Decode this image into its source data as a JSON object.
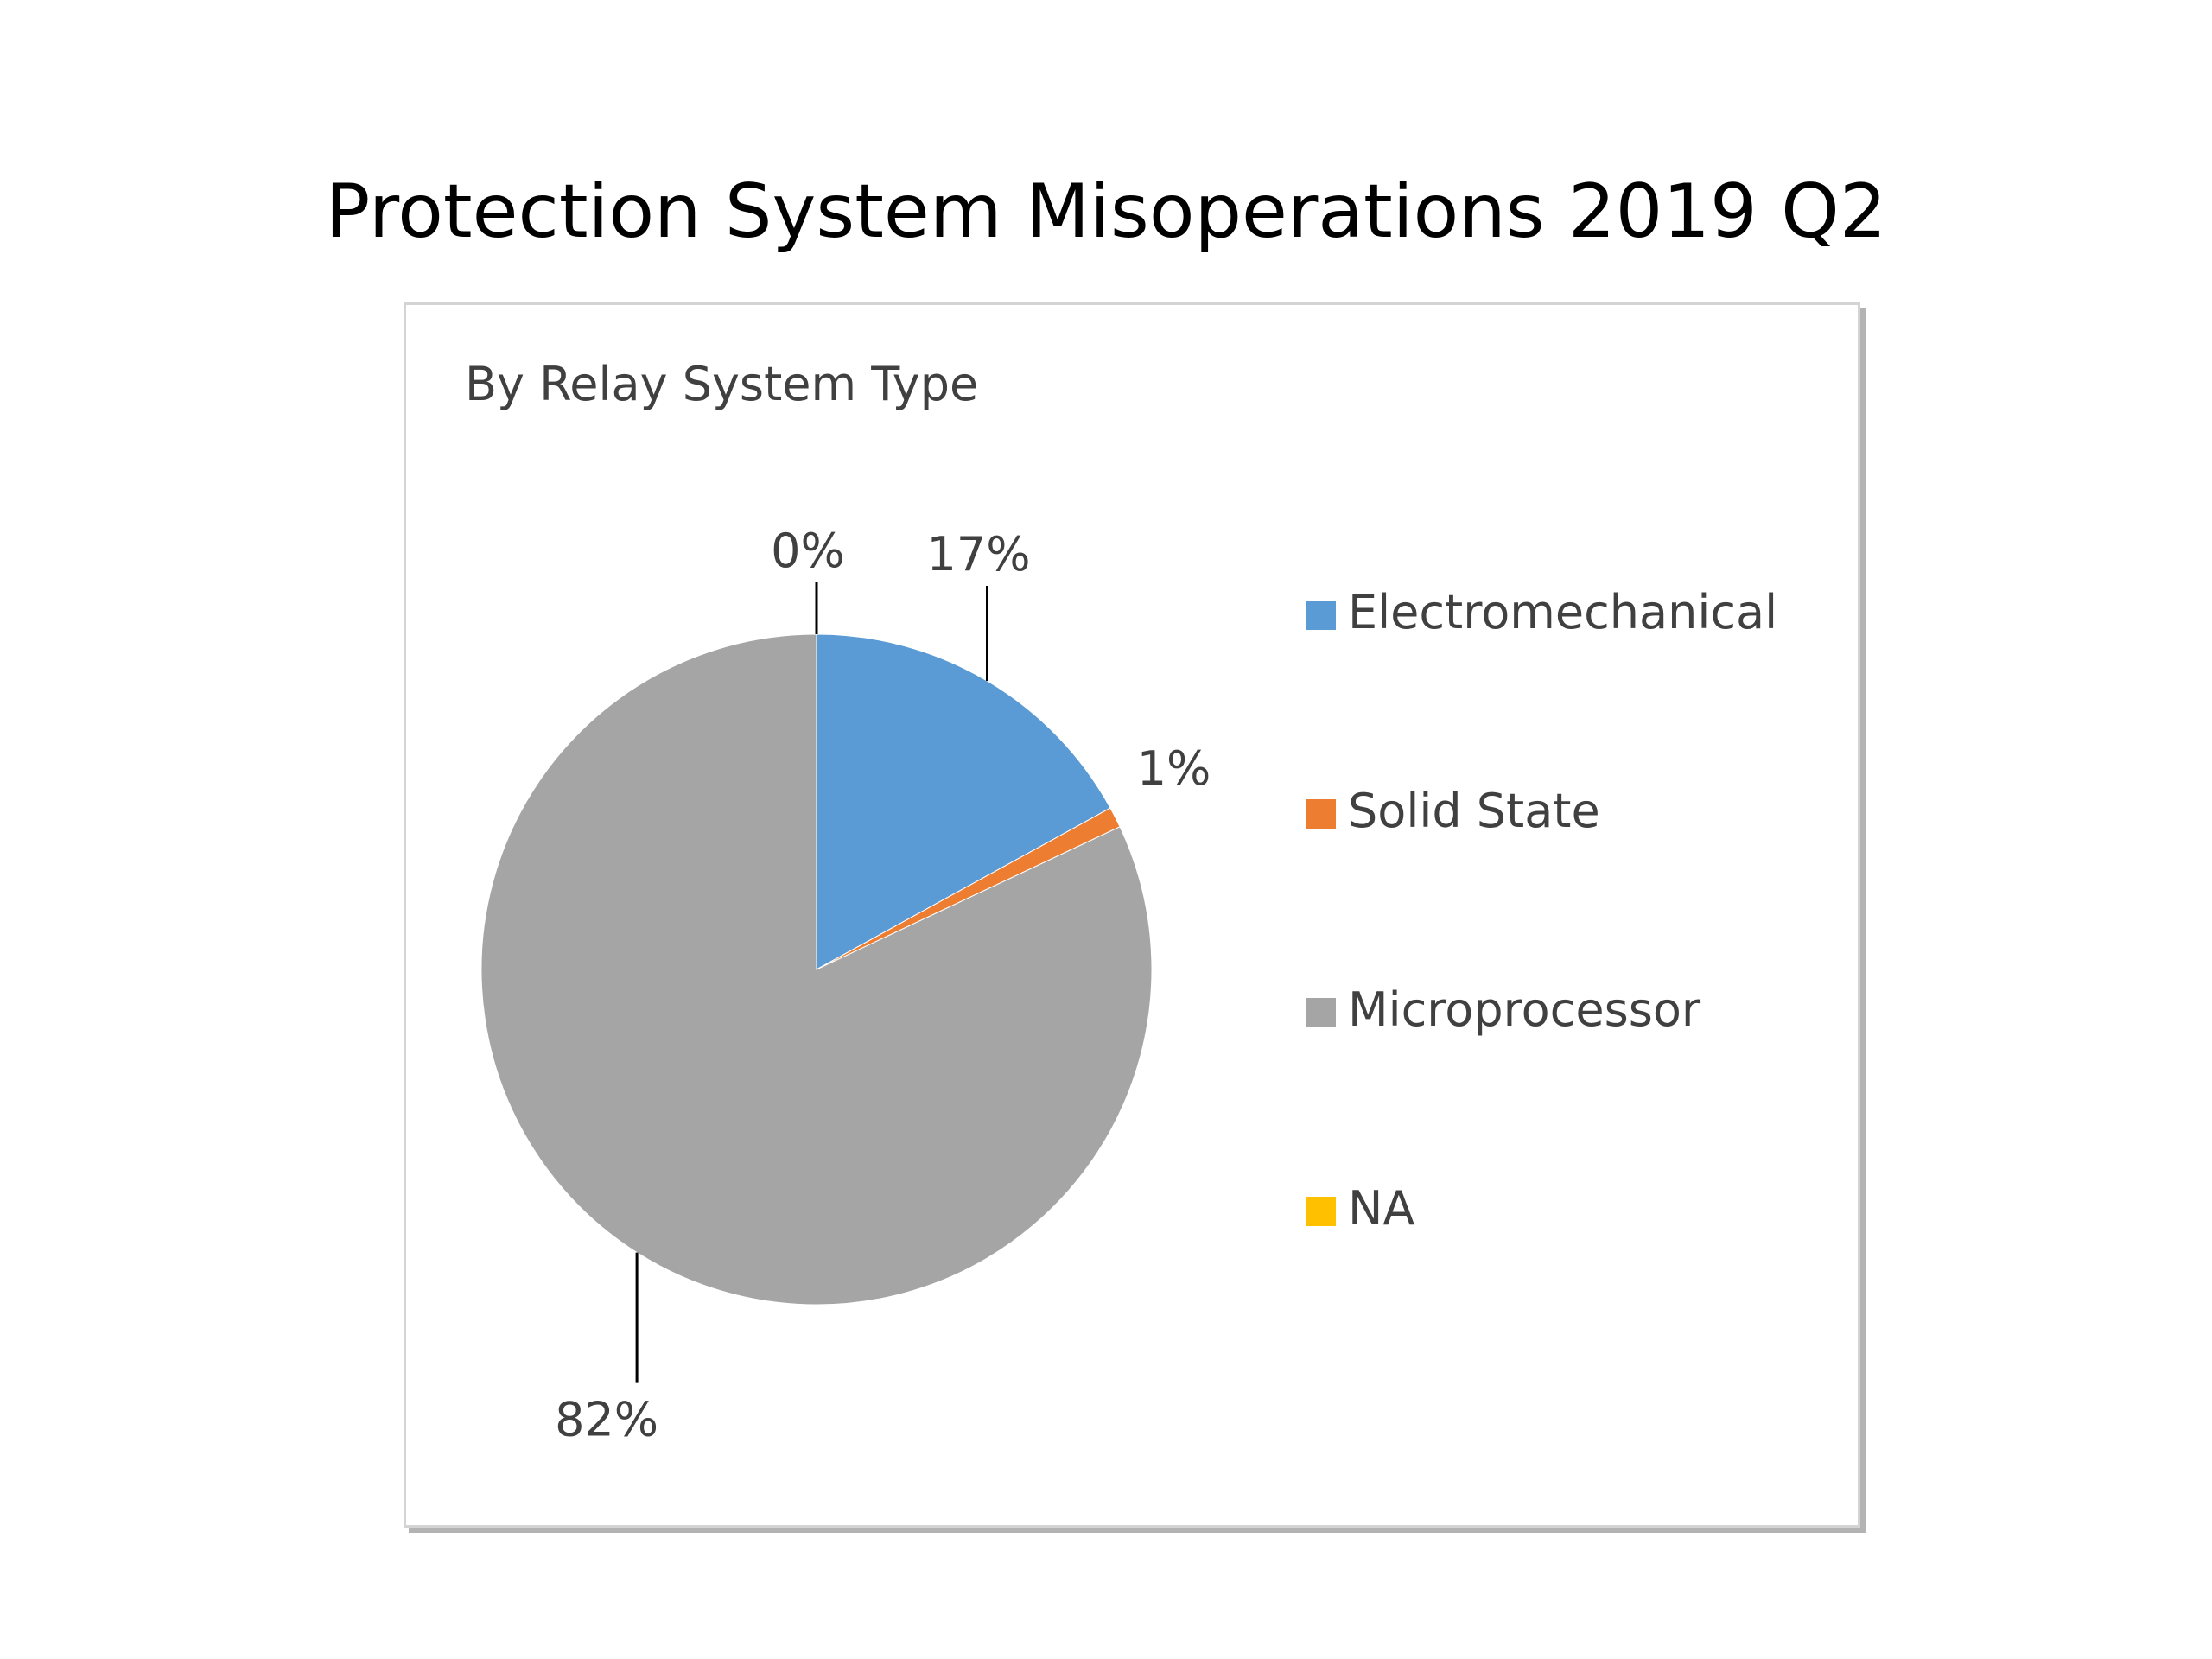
{
  "slide": {
    "title": "Protection System Misoperations 2019 Q2"
  },
  "chart_data": {
    "type": "pie",
    "title": "By Relay System Type",
    "categories": [
      "Electromechanical",
      "Solid State",
      "Microprocessor",
      "NA"
    ],
    "values": [
      17,
      1,
      82,
      0
    ],
    "data_labels": [
      "17%",
      "1%",
      "82%",
      "0%"
    ],
    "colors": [
      "#5b9bd5",
      "#ed7d31",
      "#a5a5a5",
      "#ffc000"
    ],
    "legend_position": "right",
    "start_angle_deg": 0,
    "direction": "clockwise"
  }
}
